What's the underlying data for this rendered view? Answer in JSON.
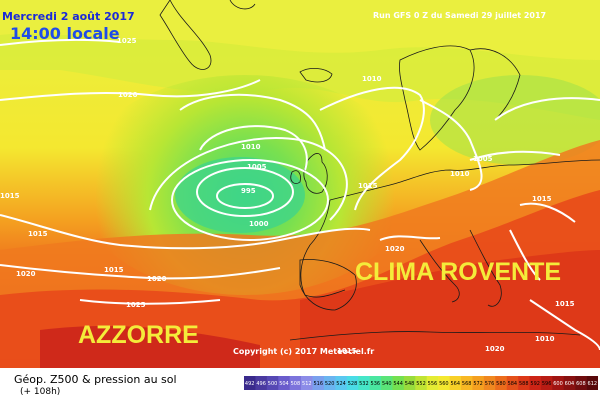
{
  "header": {
    "date_label": "Mercredi 2 août 2017",
    "time_label": "14:00 locale",
    "run_label": "Run GFS 0 Z du Samedi 29 juillet 2017"
  },
  "annotations": {
    "clima": "CLIMA ROVENTE",
    "azzorre": "AZZORRE"
  },
  "copyright": "Copyright (c) 2017 Meteociel.fr",
  "footer": {
    "title": "Géop. Z500 & pression au sol",
    "subtitle": "(+ 108h)"
  },
  "isobars": [
    "1025",
    "1020",
    "1010",
    "1010",
    "1005",
    "995",
    "1000",
    "1015",
    "1015",
    "1005",
    "1010",
    "1015",
    "1020",
    "1015",
    "1020",
    "1025",
    "1020",
    "1015",
    "1010",
    "1015",
    "1020",
    "1015"
  ],
  "scale": {
    "labels": [
      "492",
      "496",
      "500",
      "504",
      "508",
      "512",
      "516",
      "520",
      "524",
      "528",
      "532",
      "536",
      "540",
      "544",
      "548",
      "552",
      "556",
      "560",
      "564",
      "568",
      "572",
      "576",
      "580",
      "584",
      "588",
      "592",
      "596",
      "600",
      "604",
      "608",
      "612"
    ],
    "colors": [
      "#3a2a8c",
      "#4a3aa0",
      "#5648b4",
      "#6a5ccc",
      "#7c74dc",
      "#8c8ce8",
      "#7aa0ee",
      "#6ab4f0",
      "#5ac8f0",
      "#4adce6",
      "#46e6c8",
      "#4ae6a0",
      "#5ae478",
      "#74e050",
      "#98dc3c",
      "#c0e434",
      "#e4ec34",
      "#f4e830",
      "#f8d028",
      "#f8b824",
      "#f4a020",
      "#f08820",
      "#ec6c1c",
      "#e4501a",
      "#dc3818",
      "#cc2416",
      "#b81c14",
      "#a01412",
      "#881010",
      "#700c0e",
      "#58080a"
    ]
  }
}
